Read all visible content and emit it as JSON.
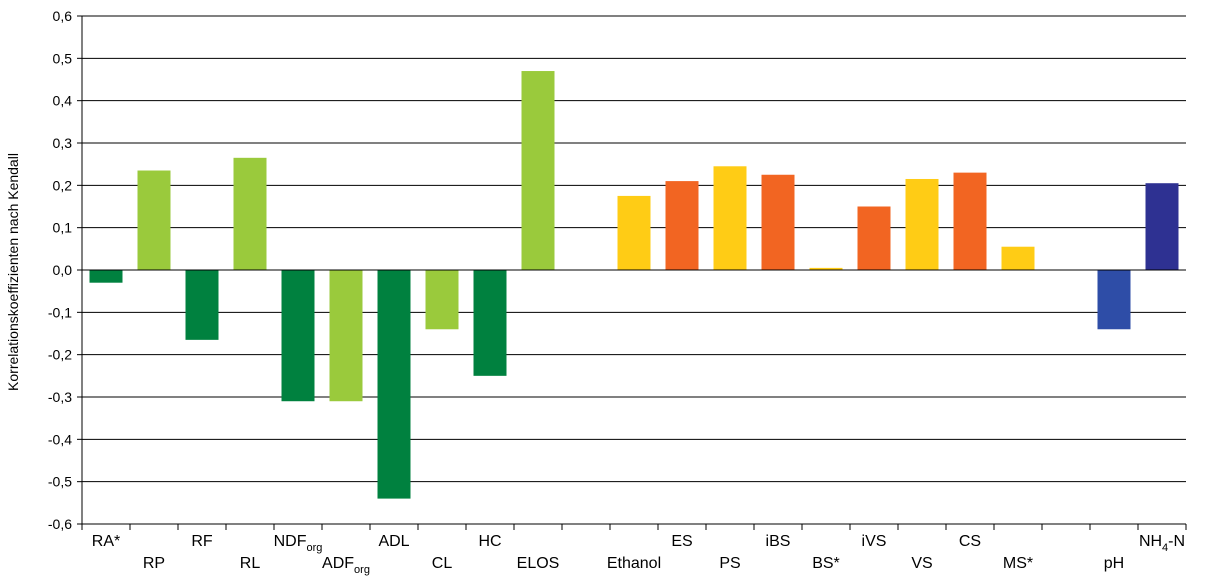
{
  "chart_data": {
    "type": "bar",
    "ylabel": "Korrelationskoeffizienten nach Kendall",
    "ylim": [
      -0.6,
      0.6
    ],
    "ytick_step": 0.1,
    "grid": true,
    "legend": "none",
    "colors": {
      "dark_green": "#00813F",
      "light_green": "#9ACA3C",
      "yellow": "#FFCC15",
      "orange": "#F26522",
      "blue": "#2E4DA7",
      "dark_blue": "#2E3192"
    },
    "categories": [
      {
        "main": "RA*",
        "sub": "",
        "value": -0.03,
        "color": "#00813F"
      },
      {
        "main": "RP",
        "sub": "",
        "value": 0.235,
        "color": "#9ACA3C"
      },
      {
        "main": "RF",
        "sub": "",
        "value": -0.165,
        "color": "#00813F"
      },
      {
        "main": "RL",
        "sub": "",
        "value": 0.265,
        "color": "#9ACA3C"
      },
      {
        "main": "NDF",
        "sub": "org",
        "value": -0.31,
        "color": "#00813F"
      },
      {
        "main": "ADF",
        "sub": "org",
        "value": -0.31,
        "color": "#9ACA3C"
      },
      {
        "main": "ADL",
        "sub": "",
        "value": -0.54,
        "color": "#00813F"
      },
      {
        "main": "CL",
        "sub": "",
        "value": -0.14,
        "color": "#9ACA3C"
      },
      {
        "main": "HC",
        "sub": "",
        "value": -0.25,
        "color": "#00813F"
      },
      {
        "main": "ELOS",
        "sub": "",
        "value": 0.47,
        "color": "#9ACA3C"
      },
      {
        "main": "",
        "sub": "",
        "value": null,
        "color": ""
      },
      {
        "main": "Ethanol",
        "sub": "",
        "value": 0.175,
        "color": "#FFCC15"
      },
      {
        "main": "ES",
        "sub": "",
        "value": 0.21,
        "color": "#F26522"
      },
      {
        "main": "PS",
        "sub": "",
        "value": 0.245,
        "color": "#FFCC15"
      },
      {
        "main": "iBS",
        "sub": "",
        "value": 0.225,
        "color": "#F26522"
      },
      {
        "main": "BS*",
        "sub": "",
        "value": 0.005,
        "color": "#FFCC15"
      },
      {
        "main": "iVS",
        "sub": "",
        "value": 0.15,
        "color": "#F26522"
      },
      {
        "main": "VS",
        "sub": "",
        "value": 0.215,
        "color": "#FFCC15"
      },
      {
        "main": "CS",
        "sub": "",
        "value": 0.23,
        "color": "#F26522"
      },
      {
        "main": "MS*",
        "sub": "",
        "value": 0.055,
        "color": "#FFCC15"
      },
      {
        "main": "",
        "sub": "",
        "value": null,
        "color": ""
      },
      {
        "main": "pH",
        "sub": "",
        "value": -0.14,
        "color": "#2E4DA7"
      },
      {
        "main": "NH",
        "sub": "4",
        "suffix": "-N",
        "value": 0.205,
        "color": "#2E3192"
      }
    ]
  }
}
